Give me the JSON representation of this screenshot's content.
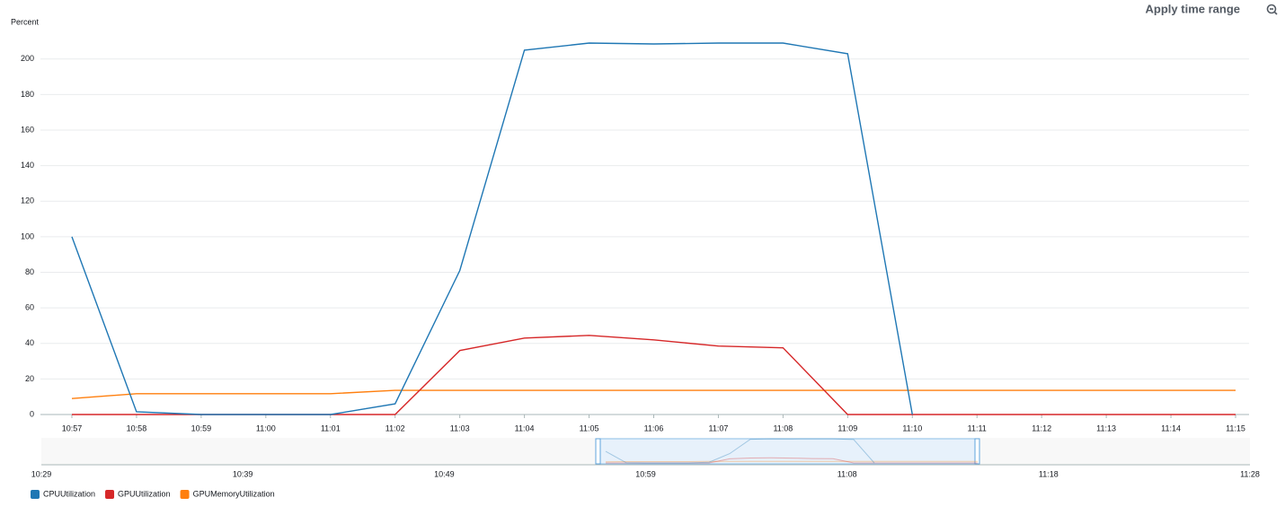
{
  "chart_data": {
    "type": "line",
    "y_label": "Percent",
    "categories": [
      "10:57",
      "10:58",
      "10:59",
      "11:00",
      "11:01",
      "11:02",
      "11:03",
      "11:04",
      "11:05",
      "11:06",
      "11:07",
      "11:08",
      "11:09",
      "11:10",
      "11:11",
      "11:12",
      "11:13",
      "11:14",
      "11:15"
    ],
    "series": [
      {
        "name": "CPUUtilization",
        "color": "#1f77b4",
        "values": [
          100,
          1.5,
          0,
          0,
          0,
          6,
          81,
          205,
          209,
          208.5,
          209,
          209,
          203,
          0,
          null,
          null,
          null,
          null,
          null
        ]
      },
      {
        "name": "GPUUtilization",
        "color": "#d62728",
        "values": [
          0,
          0,
          0,
          0,
          0,
          0,
          36,
          43,
          44.5,
          42,
          38.5,
          37.5,
          0,
          0,
          0,
          0,
          0,
          0,
          0
        ]
      },
      {
        "name": "GPUMemoryUtilization",
        "color": "#ff7f0e",
        "values": [
          9,
          11.7,
          11.7,
          11.7,
          11.7,
          13.6,
          13.6,
          13.6,
          13.6,
          13.6,
          13.6,
          13.6,
          13.6,
          13.6,
          13.6,
          13.6,
          13.6,
          13.6,
          13.6
        ]
      }
    ],
    "ylim": [
      0,
      210
    ],
    "yticks": [
      0,
      20,
      40,
      60,
      80,
      100,
      120,
      140,
      160,
      180,
      200
    ],
    "grid": true
  },
  "toolbar": {
    "apply": "Apply time range"
  },
  "navigator": {
    "labels": [
      "10:29",
      "10:39",
      "10:49",
      "10:59",
      "11:08",
      "11:18",
      "11:28"
    ]
  }
}
